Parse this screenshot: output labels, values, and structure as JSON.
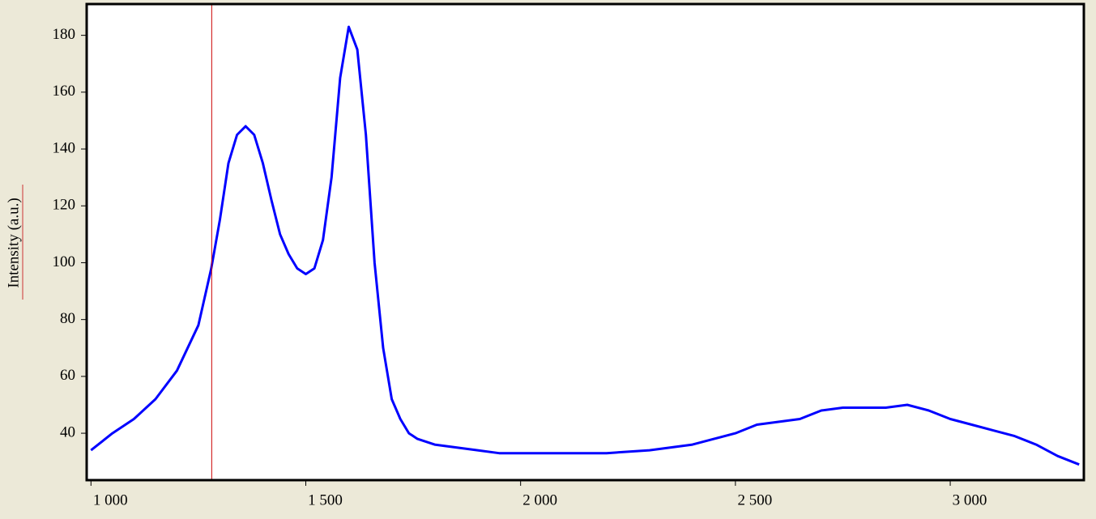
{
  "chart_data": {
    "type": "line",
    "y_label": "Intensity (a.u.)",
    "x": [
      1000,
      1050,
      1100,
      1150,
      1200,
      1250,
      1280,
      1300,
      1320,
      1340,
      1360,
      1380,
      1400,
      1420,
      1440,
      1460,
      1480,
      1500,
      1520,
      1540,
      1560,
      1580,
      1600,
      1620,
      1640,
      1660,
      1680,
      1700,
      1720,
      1740,
      1760,
      1800,
      1850,
      1900,
      1950,
      2000,
      2100,
      2200,
      2300,
      2400,
      2450,
      2500,
      2550,
      2600,
      2650,
      2700,
      2750,
      2800,
      2850,
      2900,
      2950,
      3000,
      3050,
      3100,
      3150,
      3200,
      3250,
      3300
    ],
    "values": [
      34,
      40,
      45,
      52,
      62,
      78,
      98,
      115,
      135,
      145,
      148,
      145,
      135,
      122,
      110,
      103,
      98,
      96,
      98,
      108,
      130,
      165,
      183,
      175,
      145,
      100,
      70,
      52,
      45,
      40,
      38,
      36,
      35,
      34,
      33,
      33,
      33,
      33,
      34,
      36,
      38,
      40,
      43,
      44,
      45,
      48,
      49,
      49,
      49,
      50,
      48,
      45,
      43,
      41,
      39,
      36,
      32,
      29
    ],
    "color": "#0000ff",
    "cursor_x": 1281,
    "cursor_color": "#cc0000",
    "xlim": [
      990,
      3311
    ],
    "ylim": [
      23.5,
      191
    ],
    "xticks": [
      {
        "value": 1000,
        "label": "1 000"
      },
      {
        "value": 1500,
        "label": "1 500"
      },
      {
        "value": 2000,
        "label": "2 000"
      },
      {
        "value": 2500,
        "label": "2 500"
      },
      {
        "value": 3000,
        "label": "3 000"
      }
    ],
    "yticks": [
      40,
      60,
      80,
      100,
      120,
      140,
      160,
      180
    ]
  }
}
